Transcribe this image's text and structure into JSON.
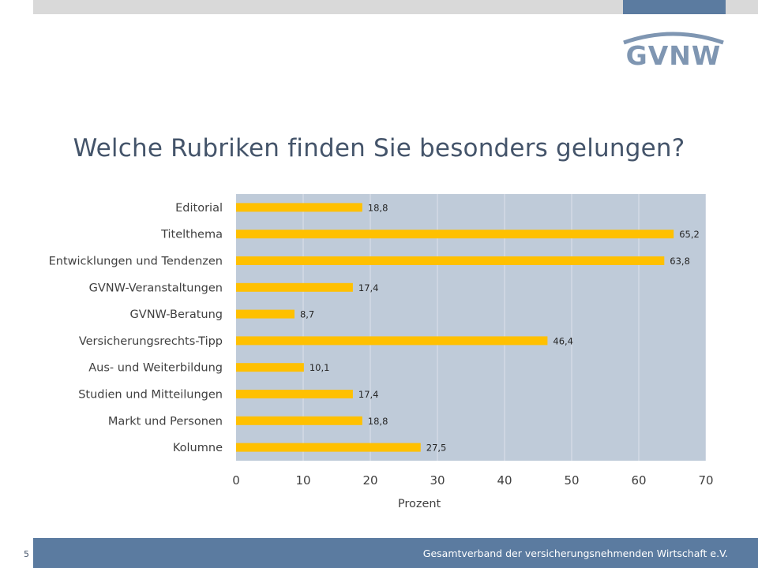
{
  "slide": {
    "title": "Welche Rubriken finden Sie besonders gelungen?",
    "page_number": "5",
    "footer_text": "Gesamtverband der versicherungsnehmenden Wirtschaft e.V."
  },
  "logo": {
    "text": "GVNW",
    "color": "#7f96b2"
  },
  "colors": {
    "accent": "#5b7ba0",
    "plot_background": "#bfcbd9",
    "bar": "#ffc000",
    "title": "#44546a"
  },
  "chart_data": {
    "type": "bar",
    "orientation": "horizontal",
    "categories": [
      "Editorial",
      "Titelthema",
      "Entwicklungen und Tendenzen",
      "GVNW-Veranstaltungen",
      "GVNW-Beratung",
      "Versicherungsrechts-Tipp",
      "Aus- und Weiterbildung",
      "Studien und Mitteilungen",
      "Markt und Personen",
      "Kolumne"
    ],
    "values": [
      18.8,
      65.2,
      63.8,
      17.4,
      8.7,
      46.4,
      10.1,
      17.4,
      18.8,
      27.5
    ],
    "value_labels": [
      "18,8",
      "65,2",
      "63,8",
      "17,4",
      "8,7",
      "46,4",
      "10,1",
      "17,4",
      "18,8",
      "27,5"
    ],
    "xlabel": "Prozent",
    "ylabel": "",
    "xlim": [
      0,
      70
    ],
    "xticks": [
      0,
      10,
      20,
      30,
      40,
      50,
      60,
      70
    ],
    "grid": true,
    "legend": "none"
  }
}
